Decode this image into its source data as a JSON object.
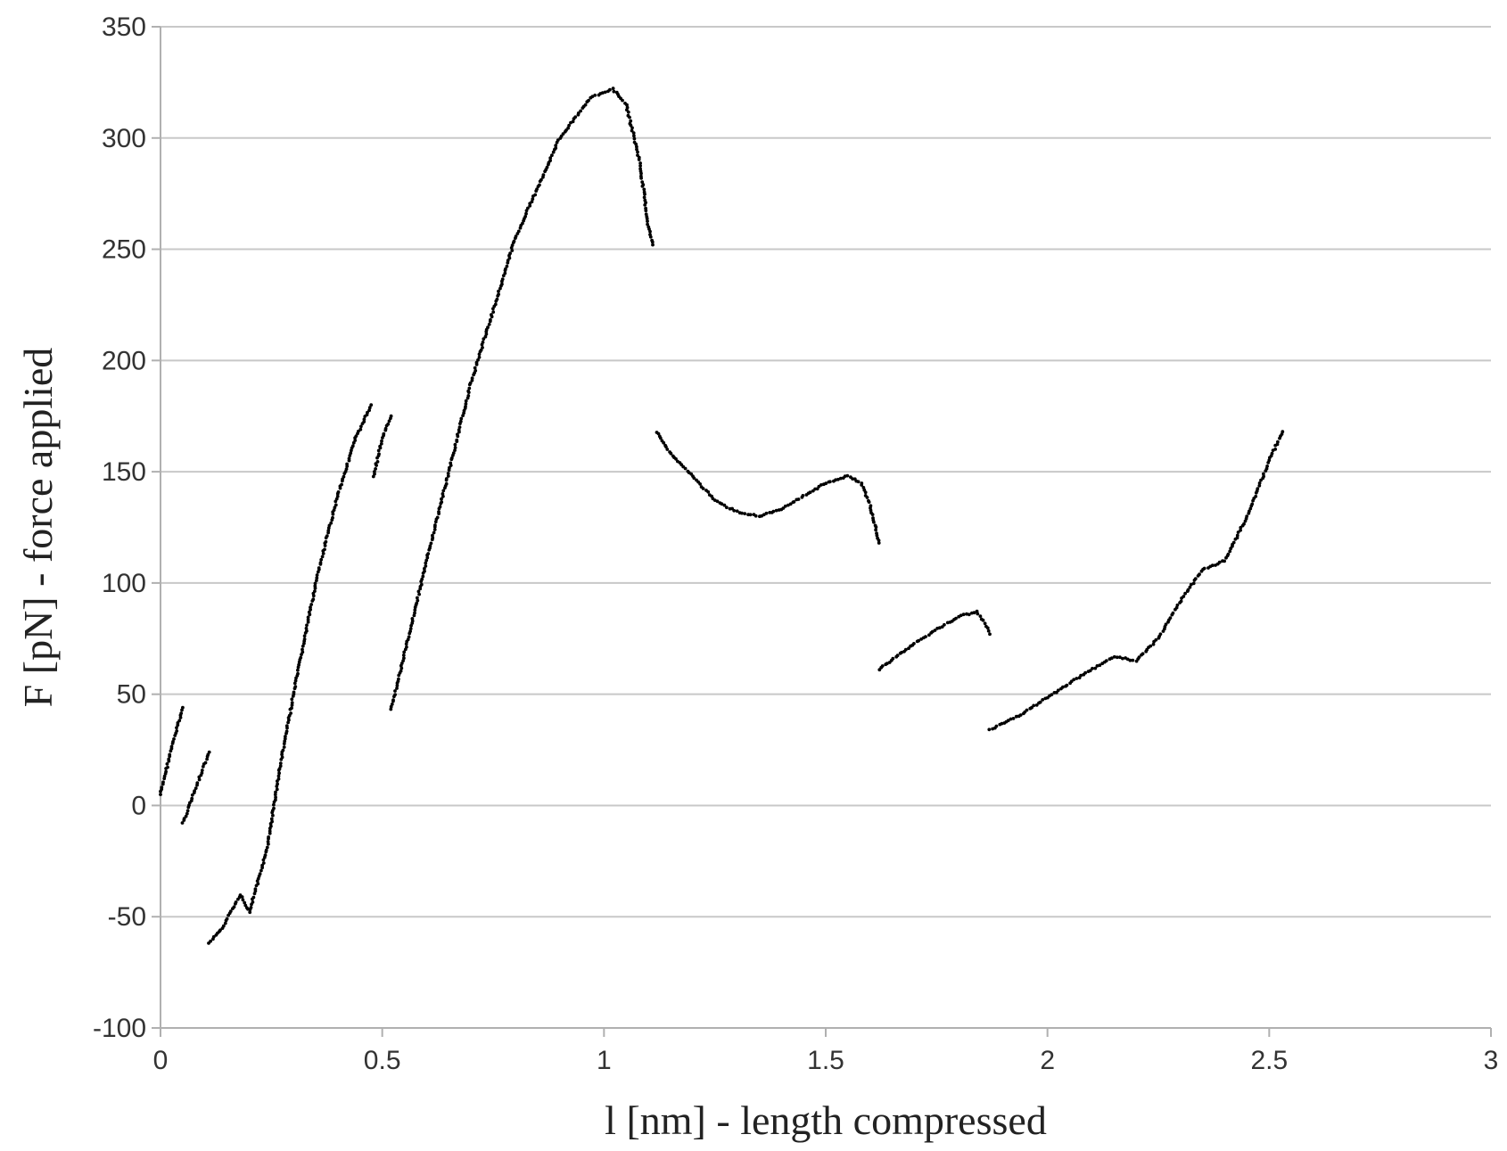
{
  "chart_data": {
    "type": "scatter",
    "title": "",
    "xlabel": "l [nm] - length compressed",
    "ylabel": "F [pN] - force applied",
    "xlim": [
      0,
      3
    ],
    "ylim": [
      -100,
      350
    ],
    "xticks": [
      0,
      0.5,
      1,
      1.5,
      2,
      2.5,
      3
    ],
    "xtick_labels": [
      "0",
      "0.5",
      "1",
      "1.5",
      "2",
      "2.5",
      "3"
    ],
    "yticks": [
      -100,
      -50,
      0,
      50,
      100,
      150,
      200,
      250,
      300,
      350
    ],
    "ytick_labels": [
      "-100",
      "-50",
      "0",
      "50",
      "100",
      "150",
      "200",
      "250",
      "300",
      "350"
    ],
    "grid": "horizontal",
    "legend": "none",
    "marker_color": "#000000",
    "series": [
      {
        "segments": [
          [
            [
              0.0,
              5
            ],
            [
              0.02,
              22
            ],
            [
              0.05,
              44
            ]
          ],
          [
            [
              0.05,
              -8
            ],
            [
              0.08,
              8
            ],
            [
              0.11,
              24
            ]
          ],
          [
            [
              0.11,
              -62
            ],
            [
              0.14,
              -55
            ],
            [
              0.18,
              -40
            ],
            [
              0.2,
              -48
            ],
            [
              0.24,
              -20
            ],
            [
              0.27,
              18
            ],
            [
              0.3,
              50
            ],
            [
              0.35,
              100
            ],
            [
              0.4,
              140
            ],
            [
              0.44,
              165
            ],
            [
              0.475,
              180
            ]
          ],
          [
            [
              0.48,
              148
            ],
            [
              0.5,
              165
            ],
            [
              0.52,
              175
            ]
          ],
          [
            [
              0.52,
              43
            ],
            [
              0.6,
              110
            ],
            [
              0.7,
              190
            ],
            [
              0.8,
              255
            ],
            [
              0.9,
              300
            ],
            [
              0.97,
              318
            ],
            [
              1.02,
              322
            ],
            [
              1.05,
              315
            ],
            [
              1.08,
              290
            ],
            [
              1.1,
              260
            ],
            [
              1.11,
              252
            ]
          ],
          [
            [
              1.12,
              168
            ],
            [
              1.15,
              158
            ],
            [
              1.2,
              148
            ],
            [
              1.25,
              137
            ],
            [
              1.3,
              132
            ],
            [
              1.35,
              130
            ],
            [
              1.4,
              133
            ],
            [
              1.45,
              139
            ],
            [
              1.5,
              145
            ],
            [
              1.55,
              148
            ],
            [
              1.58,
              145
            ],
            [
              1.6,
              135
            ],
            [
              1.62,
              118
            ]
          ],
          [
            [
              1.62,
              61
            ],
            [
              1.7,
              73
            ],
            [
              1.8,
              85
            ],
            [
              1.84,
              87
            ],
            [
              1.86,
              82
            ],
            [
              1.87,
              77
            ]
          ],
          [
            [
              1.87,
              34
            ],
            [
              1.95,
              42
            ],
            [
              2.05,
              55
            ],
            [
              2.15,
              67
            ],
            [
              2.2,
              65
            ],
            [
              2.25,
              75
            ],
            [
              2.3,
              92
            ],
            [
              2.35,
              106
            ],
            [
              2.4,
              110
            ],
            [
              2.45,
              130
            ],
            [
              2.5,
              155
            ],
            [
              2.53,
              168
            ]
          ]
        ]
      }
    ]
  }
}
